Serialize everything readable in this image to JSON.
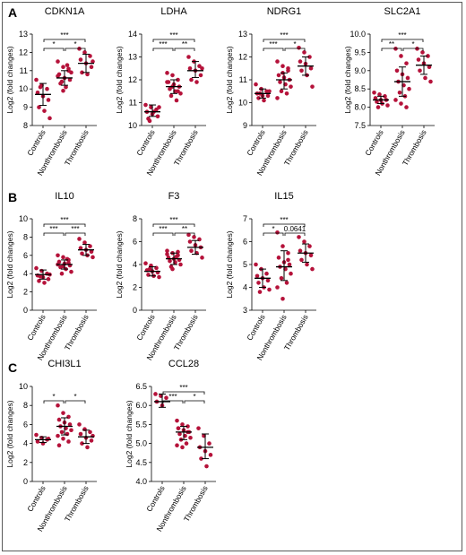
{
  "panel_labels": [
    "A",
    "B",
    "C"
  ],
  "chart_data": [
    {
      "type": "scatter",
      "title": "CDKN1A",
      "ylabel": "Log2 (fold changes)",
      "ylim": [
        8,
        13
      ],
      "yticks": [
        8,
        9,
        10,
        11,
        12,
        13
      ],
      "categories": [
        "Controls",
        "Nonthrombosis",
        "Thrombosis"
      ],
      "points": [
        [
          10.5,
          10.2,
          10.0,
          9.8,
          9.6,
          9.4,
          9.0,
          8.8,
          8.4,
          10.1
        ],
        [
          11.5,
          11.2,
          11.0,
          10.8,
          10.6,
          10.5,
          10.3,
          10.1,
          10.9,
          10.4,
          11.3,
          10.7,
          9.9,
          11.1
        ],
        [
          12.2,
          12.0,
          11.8,
          11.6,
          11.4,
          11.2,
          10.9,
          10.8,
          11.5
        ]
      ],
      "summary": [
        {
          "mean": 9.7,
          "lo": 9.1,
          "hi": 10.3
        },
        {
          "mean": 10.6,
          "lo": 10.2,
          "hi": 11.0
        },
        {
          "mean": 11.4,
          "lo": 10.9,
          "hi": 11.9
        }
      ],
      "significance": [
        {
          "pair": [
            0,
            2
          ],
          "label": "***"
        },
        {
          "pair": [
            0,
            1
          ],
          "label": "*"
        },
        {
          "pair": [
            1,
            2
          ],
          "label": "*"
        }
      ]
    },
    {
      "type": "scatter",
      "title": "LDHA",
      "ylabel": "Log2 (fold changes)",
      "ylim": [
        10,
        14
      ],
      "yticks": [
        10,
        11,
        12,
        13,
        14
      ],
      "categories": [
        "Controls",
        "Nonthrombosis",
        "Thrombosis"
      ],
      "points": [
        [
          10.9,
          10.8,
          10.7,
          10.6,
          10.5,
          10.4,
          10.3,
          10.6,
          10.8,
          10.2
        ],
        [
          12.3,
          12.2,
          12.0,
          11.9,
          11.8,
          11.7,
          11.6,
          11.5,
          11.4,
          11.3,
          11.1,
          11.9,
          11.7,
          11.5
        ],
        [
          13.0,
          12.8,
          12.6,
          12.5,
          12.4,
          12.2,
          12.0,
          11.9,
          12.5
        ]
      ],
      "summary": [
        {
          "mean": 10.6,
          "lo": 10.4,
          "hi": 10.9
        },
        {
          "mean": 11.7,
          "lo": 11.4,
          "hi": 12.0
        },
        {
          "mean": 12.4,
          "lo": 12.1,
          "hi": 12.8
        }
      ],
      "significance": [
        {
          "pair": [
            0,
            2
          ],
          "label": "***"
        },
        {
          "pair": [
            0,
            1
          ],
          "label": "***"
        },
        {
          "pair": [
            1,
            2
          ],
          "label": "**"
        }
      ]
    },
    {
      "type": "scatter",
      "title": "NDRG1",
      "ylabel": "Log2 (fold changes)",
      "ylim": [
        9,
        13
      ],
      "yticks": [
        9,
        10,
        11,
        12,
        13
      ],
      "categories": [
        "Controls",
        "Nonthrombosis",
        "Thrombosis"
      ],
      "points": [
        [
          10.8,
          10.6,
          10.5,
          10.4,
          10.3,
          10.3,
          10.2,
          10.1,
          10.5,
          10.4
        ],
        [
          11.8,
          11.6,
          11.4,
          11.2,
          11.1,
          11.0,
          10.9,
          10.8,
          10.7,
          10.5,
          10.4,
          10.2,
          11.3,
          11.5
        ],
        [
          12.4,
          12.2,
          12.0,
          11.8,
          11.7,
          11.5,
          11.4,
          11.2,
          10.7
        ]
      ],
      "summary": [
        {
          "mean": 10.4,
          "lo": 10.2,
          "hi": 10.6
        },
        {
          "mean": 11.0,
          "lo": 10.6,
          "hi": 11.3
        },
        {
          "mean": 11.6,
          "lo": 11.2,
          "hi": 12.0
        }
      ],
      "significance": [
        {
          "pair": [
            0,
            2
          ],
          "label": "***"
        },
        {
          "pair": [
            0,
            1
          ],
          "label": "***"
        },
        {
          "pair": [
            1,
            2
          ],
          "label": "*"
        }
      ]
    },
    {
      "type": "scatter",
      "title": "SLC2A1",
      "ylabel": "Log2 (fold changes)",
      "ylim": [
        7.5,
        10.0
      ],
      "yticks": [
        7.5,
        8.0,
        8.5,
        9.0,
        9.5,
        10.0
      ],
      "categories": [
        "Controls",
        "Nonthrombosis",
        "Thrombosis"
      ],
      "points": [
        [
          8.4,
          8.35,
          8.3,
          8.25,
          8.2,
          8.2,
          8.15,
          8.1,
          8.05,
          8.0
        ],
        [
          9.6,
          9.4,
          9.2,
          9.0,
          8.9,
          8.8,
          8.7,
          8.6,
          8.5,
          8.4,
          8.3,
          8.2,
          8.1,
          8.0
        ],
        [
          9.6,
          9.5,
          9.4,
          9.3,
          9.2,
          9.1,
          9.0,
          8.8,
          8.7
        ]
      ],
      "summary": [
        {
          "mean": 8.2,
          "lo": 8.1,
          "hi": 8.3
        },
        {
          "mean": 8.7,
          "lo": 8.3,
          "hi": 9.1
        },
        {
          "mean": 9.15,
          "lo": 8.9,
          "hi": 9.4
        }
      ],
      "significance": [
        {
          "pair": [
            0,
            2
          ],
          "label": "***"
        },
        {
          "pair": [
            0,
            1
          ],
          "label": "**"
        },
        {
          "pair": [
            1,
            2
          ],
          "label": "*"
        }
      ]
    },
    {
      "type": "scatter",
      "title": "IL10",
      "ylabel": "Log2 (fold changes)",
      "ylim": [
        0,
        10
      ],
      "yticks": [
        0,
        2,
        4,
        6,
        8,
        10
      ],
      "categories": [
        "Controls",
        "Nonthrombosis",
        "Thrombosis"
      ],
      "points": [
        [
          4.6,
          4.3,
          4.0,
          3.8,
          3.6,
          3.4,
          3.2,
          3.0,
          3.9,
          3.7
        ],
        [
          6.0,
          5.8,
          5.5,
          5.3,
          5.1,
          4.9,
          4.7,
          4.5,
          4.2,
          4.0,
          5.6,
          5.0,
          4.8,
          5.2
        ],
        [
          7.8,
          7.4,
          7.0,
          6.8,
          6.6,
          6.4,
          6.2,
          6.0,
          5.8
        ]
      ],
      "summary": [
        {
          "mean": 3.9,
          "lo": 3.4,
          "hi": 4.4
        },
        {
          "mean": 5.0,
          "lo": 4.5,
          "hi": 5.5
        },
        {
          "mean": 6.6,
          "lo": 6.0,
          "hi": 7.2
        }
      ],
      "significance": [
        {
          "pair": [
            0,
            2
          ],
          "label": "***"
        },
        {
          "pair": [
            0,
            1
          ],
          "label": "***"
        },
        {
          "pair": [
            1,
            2
          ],
          "label": "***"
        }
      ]
    },
    {
      "type": "scatter",
      "title": "F3",
      "ylabel": "Log2 (fold changes)",
      "ylim": [
        0,
        8
      ],
      "yticks": [
        0,
        2,
        4,
        6,
        8
      ],
      "categories": [
        "Controls",
        "Nonthrombosis",
        "Thrombosis"
      ],
      "points": [
        [
          4.1,
          3.9,
          3.7,
          3.5,
          3.4,
          3.3,
          3.1,
          3.0,
          2.9,
          3.6
        ],
        [
          5.2,
          5.0,
          4.8,
          4.6,
          4.5,
          4.4,
          4.3,
          4.2,
          4.0,
          3.8,
          4.7,
          4.9,
          3.6,
          5.1
        ],
        [
          6.6,
          6.4,
          6.2,
          6.0,
          5.7,
          5.5,
          5.2,
          5.0,
          4.6
        ]
      ],
      "summary": [
        {
          "mean": 3.4,
          "lo": 3.0,
          "hi": 3.8
        },
        {
          "mean": 4.5,
          "lo": 4.0,
          "hi": 5.0
        },
        {
          "mean": 5.5,
          "lo": 4.9,
          "hi": 6.1
        }
      ],
      "significance": [
        {
          "pair": [
            0,
            2
          ],
          "label": "***"
        },
        {
          "pair": [
            0,
            1
          ],
          "label": "***"
        },
        {
          "pair": [
            1,
            2
          ],
          "label": "**"
        }
      ]
    },
    {
      "type": "scatter",
      "title": "IL15",
      "ylabel": "Log2 (fold changes)",
      "ylim": [
        3,
        7
      ],
      "yticks": [
        3,
        4,
        5,
        6,
        7
      ],
      "categories": [
        "Controls",
        "Nonthrombosis",
        "Thrombosis"
      ],
      "points": [
        [
          5.0,
          4.8,
          4.6,
          4.5,
          4.4,
          4.3,
          4.2,
          4.0,
          3.9,
          3.8
        ],
        [
          6.4,
          5.8,
          5.5,
          5.3,
          5.1,
          5.0,
          4.9,
          4.8,
          4.6,
          4.4,
          4.2,
          4.0,
          3.5,
          5.2
        ],
        [
          6.2,
          6.0,
          5.8,
          5.6,
          5.5,
          5.4,
          5.2,
          5.0,
          4.8
        ]
      ],
      "summary": [
        {
          "mean": 4.4,
          "lo": 4.0,
          "hi": 4.8
        },
        {
          "mean": 4.9,
          "lo": 4.3,
          "hi": 5.6
        },
        {
          "mean": 5.5,
          "lo": 5.1,
          "hi": 5.9
        }
      ],
      "significance": [
        {
          "pair": [
            0,
            2
          ],
          "label": "***"
        },
        {
          "pair": [
            0,
            1
          ],
          "label": "*"
        },
        {
          "pair": [
            1,
            2
          ],
          "label": "0.0641"
        }
      ]
    },
    {
      "type": "scatter",
      "title": "CHI3L1",
      "ylabel": "Log2 (fold changes)",
      "ylim": [
        0,
        10
      ],
      "yticks": [
        0,
        2,
        4,
        6,
        8,
        10
      ],
      "categories": [
        "Controls",
        "Nonthrombosis",
        "Thrombosis"
      ],
      "points": [
        [
          4.9,
          4.6,
          4.4,
          4.2,
          4.0,
          4.5
        ],
        [
          8.0,
          7.2,
          6.8,
          6.5,
          6.2,
          6.0,
          5.8,
          5.6,
          5.4,
          5.2,
          5.0,
          4.8,
          4.5,
          4.2,
          3.8
        ],
        [
          6.0,
          5.5,
          5.2,
          5.0,
          4.6,
          4.3,
          4.0,
          3.6,
          4.8
        ]
      ],
      "summary": [
        {
          "mean": 4.4,
          "lo": 4.1,
          "hi": 4.7
        },
        {
          "mean": 5.8,
          "lo": 4.9,
          "hi": 6.7
        },
        {
          "mean": 4.7,
          "lo": 4.0,
          "hi": 5.4
        }
      ],
      "significance": [
        {
          "pair": [
            0,
            1
          ],
          "label": "*"
        },
        {
          "pair": [
            1,
            2
          ],
          "label": "*"
        }
      ]
    },
    {
      "type": "scatter",
      "title": "CCL28",
      "ylabel": "Log2 (fold changes)",
      "ylim": [
        4.0,
        6.5
      ],
      "yticks": [
        4.0,
        4.5,
        5.0,
        5.5,
        6.0,
        6.5
      ],
      "categories": [
        "Controls",
        "Nonthrombosis",
        "Thrombosis"
      ],
      "points": [
        [
          6.3,
          6.25,
          6.2,
          6.1,
          6.0
        ],
        [
          5.6,
          5.5,
          5.45,
          5.4,
          5.35,
          5.3,
          5.25,
          5.2,
          5.15,
          5.1,
          5.0,
          4.95,
          4.9,
          5.3,
          5.4
        ],
        [
          5.4,
          5.2,
          5.0,
          4.9,
          4.8,
          4.7,
          4.6,
          4.4
        ]
      ],
      "summary": [
        {
          "mean": 6.1,
          "lo": 5.95,
          "hi": 6.3
        },
        {
          "mean": 5.3,
          "lo": 5.1,
          "hi": 5.45
        },
        {
          "mean": 4.9,
          "lo": 4.6,
          "hi": 5.25
        }
      ],
      "significance": [
        {
          "pair": [
            0,
            2
          ],
          "label": "***"
        },
        {
          "pair": [
            0,
            1
          ],
          "label": "***"
        },
        {
          "pair": [
            1,
            2
          ],
          "label": "*"
        }
      ]
    }
  ]
}
